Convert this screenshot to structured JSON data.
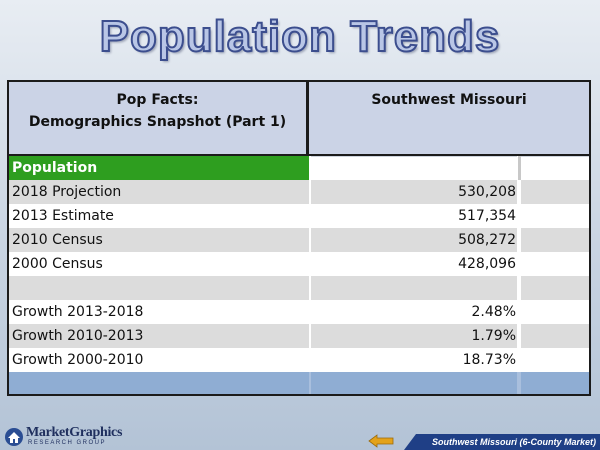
{
  "title": "Population Trends",
  "table": {
    "header_left_line1": "Pop Facts:",
    "header_left_line2": "Demographics Snapshot (Part 1)",
    "header_right": "Southwest Missouri",
    "section_label": "Population",
    "rows": [
      {
        "label": "2018 Projection",
        "value": "530,208"
      },
      {
        "label": "2013 Estimate",
        "value": "517,354"
      },
      {
        "label": "2010 Census",
        "value": "508,272"
      },
      {
        "label": "2000 Census",
        "value": "428,096"
      },
      {
        "label": "",
        "value": ""
      },
      {
        "label": "Growth 2013-2018",
        "value": "2.48%"
      },
      {
        "label": "Growth 2010-2013",
        "value": "1.79%"
      },
      {
        "label": "Growth 2000-2010",
        "value": "18.73%"
      }
    ]
  },
  "footer": {
    "logo_name": "MarketGraphics",
    "logo_sub": "RESEARCH GROUP",
    "region_label": "Southwest Missouri (6-County Market)",
    "back_icon": "left-arrow-icon"
  },
  "colors": {
    "section_green": "#2e9e1f",
    "header_fill": "#cbd3e6",
    "row_gray": "#dcdcdc",
    "footer_blue": "#8fadd3",
    "title_outline": "#3c4e8e",
    "footer_bar": "#1f3f86"
  }
}
